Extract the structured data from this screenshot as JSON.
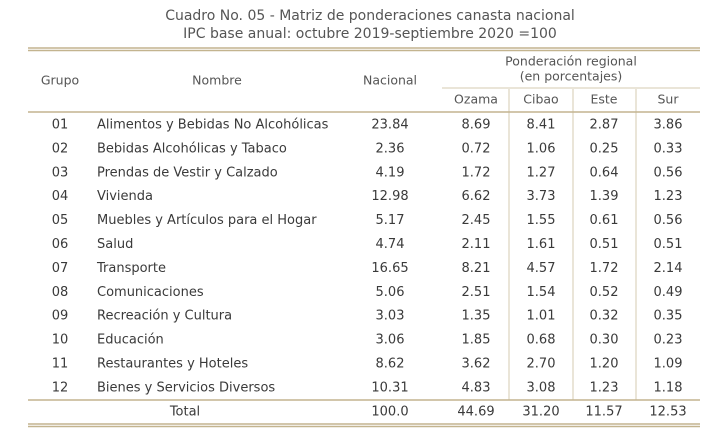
{
  "title": {
    "line1": "Cuadro No. 05 - Matriz de ponderaciones canasta nacional",
    "line2": "IPC base anual: octubre 2019-septiembre 2020 =100"
  },
  "table": {
    "headers": {
      "grupo": "Grupo",
      "nombre": "Nombre",
      "nacional": "Nacional",
      "regional_line1": "Ponderación regional",
      "regional_line2": "(en porcentajes)",
      "ozama": "Ozama",
      "cibao": "Cibao",
      "este": "Este",
      "sur": "Sur"
    },
    "rows": [
      [
        "01",
        "Alimentos y Bebidas No Alcohólicas",
        "23.84",
        "8.69",
        "8.41",
        "2.87",
        "3.86"
      ],
      [
        "02",
        "Bebidas Alcohólicas y Tabaco",
        "2.36",
        "0.72",
        "1.06",
        "0.25",
        "0.33"
      ],
      [
        "03",
        "Prendas de Vestir y Calzado",
        "4.19",
        "1.72",
        "1.27",
        "0.64",
        "0.56"
      ],
      [
        "04",
        "Vivienda",
        "12.98",
        "6.62",
        "3.73",
        "1.39",
        "1.23"
      ],
      [
        "05",
        "Muebles y Artículos para el Hogar",
        "5.17",
        "2.45",
        "1.55",
        "0.61",
        "0.56"
      ],
      [
        "06",
        "Salud",
        "4.74",
        "2.11",
        "1.61",
        "0.51",
        "0.51"
      ],
      [
        "07",
        "Transporte",
        "16.65",
        "8.21",
        "4.57",
        "1.72",
        "2.14"
      ],
      [
        "08",
        "Comunicaciones",
        "5.06",
        "2.51",
        "1.54",
        "0.52",
        "0.49"
      ],
      [
        "09",
        "Recreación y Cultura",
        "3.03",
        "1.35",
        "1.01",
        "0.32",
        "0.35"
      ],
      [
        "10",
        "Educación",
        "3.06",
        "1.85",
        "0.68",
        "0.30",
        "0.23"
      ],
      [
        "11",
        "Restaurantes y Hoteles",
        "8.62",
        "3.62",
        "2.70",
        "1.20",
        "1.09"
      ],
      [
        "12",
        "Bienes y Servicios Diversos",
        "10.31",
        "4.83",
        "3.08",
        "1.23",
        "1.18"
      ]
    ],
    "total": [
      "Total",
      "100.0",
      "44.69",
      "31.20",
      "11.57",
      "12.53"
    ]
  }
}
